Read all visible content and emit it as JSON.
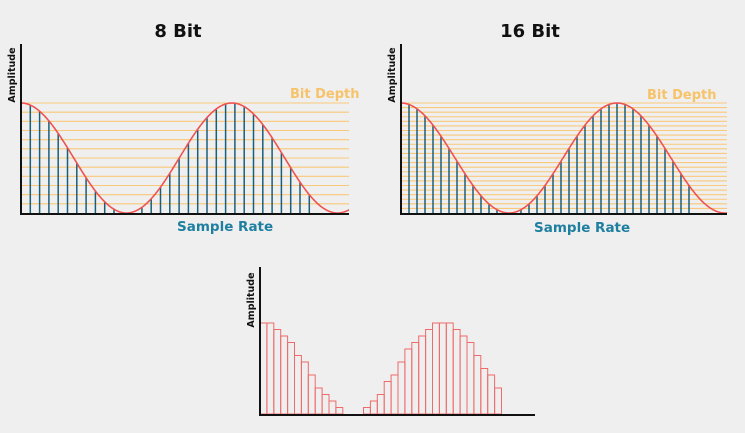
{
  "diagram": {
    "panels": [
      {
        "title": "8 Bit",
        "ylabel": "Amplitude",
        "bitDepthLabel": "Bit Depth",
        "sampleRateLabel": "Sample Rate"
      },
      {
        "title": "16 Bit",
        "ylabel": "Amplitude",
        "bitDepthLabel": "Bit Depth",
        "sampleRateLabel": "Sample Rate"
      }
    ],
    "bottom": {
      "ylabel": "Amplitude"
    }
  },
  "colors": {
    "background": "#efefef",
    "wave": "#ef5350",
    "samples": "#1a5f7a",
    "levels": "#f9c87a",
    "axis": "#111111",
    "sampleRateText": "#1f7fa0",
    "bitDepthText": "#f7c36a",
    "steps": "#ef6a6a"
  }
}
